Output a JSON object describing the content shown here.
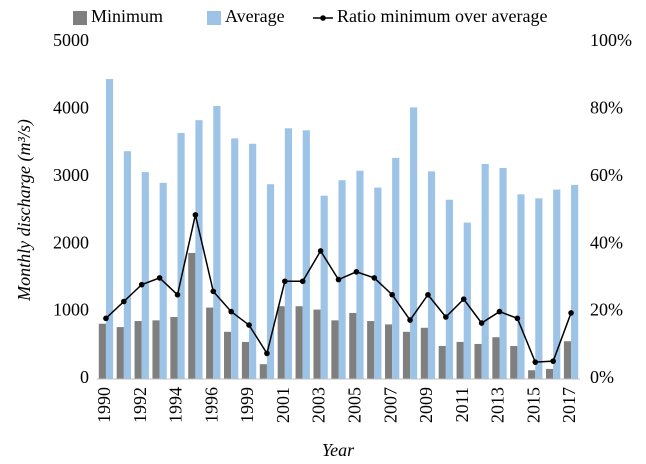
{
  "chart_data": {
    "type": "bar_line",
    "x_label": "Year",
    "y_label": "Monthly discharge (m³/s)",
    "categories": [
      "1990",
      null,
      "1992",
      null,
      "1994",
      null,
      "1996",
      null,
      "1999",
      null,
      "2001",
      null,
      "2003",
      null,
      "2005",
      null,
      "2007",
      null,
      "2009",
      null,
      "2011",
      null,
      "2013",
      null,
      "2015",
      null,
      "2017"
    ],
    "series": [
      {
        "name": "Minimum",
        "color": "#7f7f7f",
        "values": [
          820,
          770,
          860,
          870,
          920,
          1870,
          1060,
          700,
          550,
          220,
          1080,
          1080,
          1030,
          870,
          980,
          860,
          810,
          700,
          760,
          490,
          550,
          520,
          620,
          490,
          130,
          150,
          560
        ]
      },
      {
        "name": "Average",
        "color": "#9dc3e6",
        "values": [
          4450,
          3380,
          3070,
          2910,
          3650,
          3840,
          4050,
          3570,
          3490,
          2890,
          3720,
          3690,
          2720,
          2950,
          3090,
          2840,
          3280,
          4030,
          3080,
          2660,
          2320,
          3190,
          3130,
          2740,
          2680,
          2810,
          2880
        ]
      },
      {
        "name": "Ratio minimum over average",
        "color": "#000000",
        "axis": "y2",
        "values": [
          18,
          23,
          28,
          30,
          25,
          48.7,
          26,
          20,
          16,
          7.6,
          29,
          29,
          38,
          29.5,
          31.8,
          30,
          25,
          17.5,
          25,
          18.4,
          23.7,
          16.6,
          20,
          18,
          5,
          5.3,
          19.6
        ]
      }
    ],
    "ylim": [
      0,
      5000
    ],
    "yticks": [
      0,
      1000,
      2000,
      3000,
      4000,
      5000
    ],
    "y2lim": [
      0,
      100
    ],
    "y2ticks": [
      {
        "value": 0,
        "label": "0%"
      },
      {
        "value": 20,
        "label": "20%"
      },
      {
        "value": 40,
        "label": "40%"
      },
      {
        "value": 60,
        "label": "60%"
      },
      {
        "value": 80,
        "label": "80%"
      },
      {
        "value": 100,
        "label": "100%"
      }
    ],
    "legend": "top"
  }
}
